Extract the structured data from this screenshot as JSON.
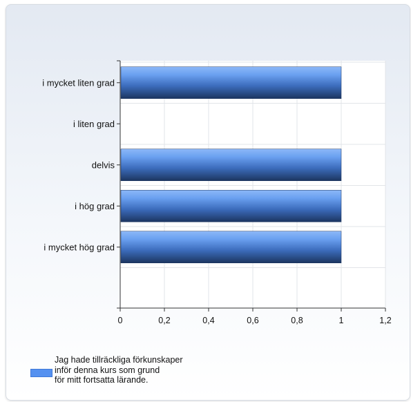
{
  "chart_data": {
    "type": "bar",
    "orientation": "horizontal",
    "categories": [
      "i mycket liten grad",
      "i liten grad",
      "delvis",
      "i hög grad",
      "i mycket hög grad"
    ],
    "series": [
      {
        "name": "Jag hade tillräckliga förkunskaper inför denna kurs som grund för mitt fortsatta lärande.",
        "color": "#5591f0",
        "values": [
          1,
          0,
          1,
          1,
          1
        ]
      }
    ],
    "x_ticks": [
      "0",
      "0,2",
      "0,4",
      "0,6",
      "0,8",
      "1",
      "1,2"
    ],
    "xlim": [
      0,
      1.2
    ],
    "grid": true,
    "legend_position": "bottom-left",
    "legend_text": "Jag hade tillräckliga förkunskaper\ninför denna kurs som grund\nför mitt fortsatta lärande."
  }
}
